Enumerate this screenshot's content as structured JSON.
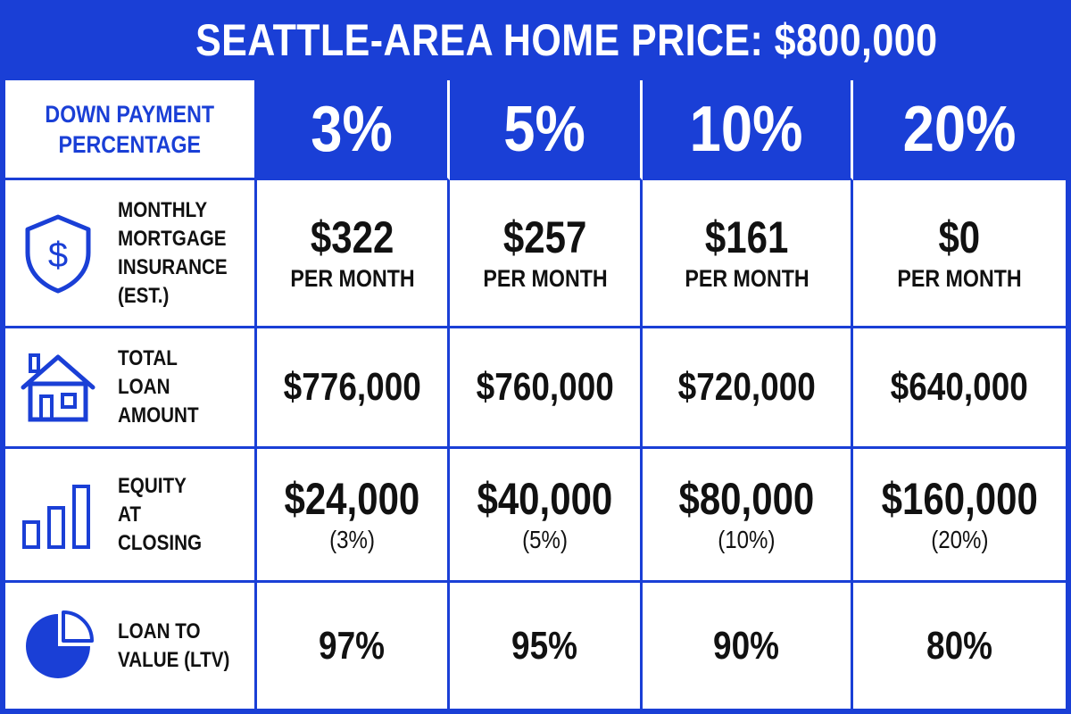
{
  "title": "SEATTLE-AREA HOME PRICE: $800,000",
  "header": {
    "corner_lines": [
      "DOWN PAYMENT",
      "PERCENTAGE"
    ],
    "columns": [
      "3%",
      "5%",
      "10%",
      "20%"
    ]
  },
  "rows": {
    "pmi": {
      "icon": "shield-dollar-icon",
      "label_lines": [
        "MONTHLY",
        "MORTGAGE",
        "INSURANCE",
        "(EST.)"
      ],
      "values": [
        "$322",
        "$257",
        "$161",
        "$0"
      ],
      "unit": "PER MONTH"
    },
    "loan": {
      "icon": "house-icon",
      "label_lines": [
        "TOTAL",
        "LOAN",
        "AMOUNT"
      ],
      "values": [
        "$776,000",
        "$760,000",
        "$720,000",
        "$640,000"
      ]
    },
    "equity": {
      "icon": "bar-chart-icon",
      "label_lines": [
        "EQUITY",
        "AT",
        "CLOSING"
      ],
      "values": [
        "$24,000",
        "$40,000",
        "$80,000",
        "$160,000"
      ],
      "subs": [
        "(3%)",
        "(5%)",
        "(10%)",
        "(20%)"
      ]
    },
    "ltv": {
      "icon": "pie-chart-icon",
      "label_lines": [
        "LOAN TO",
        "VALUE (LTV)"
      ],
      "values": [
        "97%",
        "95%",
        "90%",
        "80%"
      ]
    }
  },
  "colors": {
    "accent": "#1a3fd6",
    "text": "#111111",
    "background": "#ffffff"
  }
}
